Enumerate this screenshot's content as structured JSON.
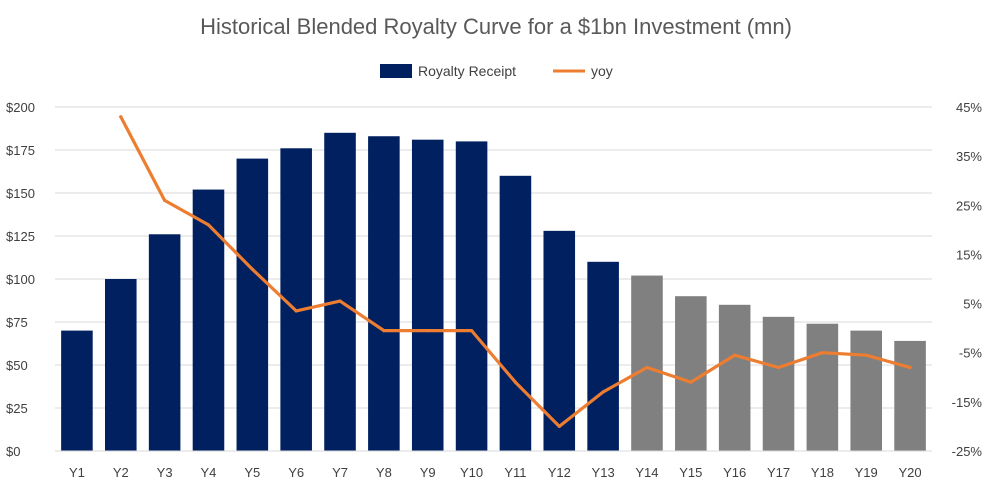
{
  "chart_data": {
    "type": "bar",
    "title": "Historical Blended Royalty Curve for a $1bn Investment (mn)",
    "categories": [
      "Y1",
      "Y2",
      "Y3",
      "Y4",
      "Y5",
      "Y6",
      "Y7",
      "Y8",
      "Y9",
      "Y10",
      "Y11",
      "Y12",
      "Y13",
      "Y14",
      "Y15",
      "Y16",
      "Y17",
      "Y18",
      "Y19",
      "Y20"
    ],
    "series": [
      {
        "name": "Royalty Receipt",
        "type": "bar",
        "axis": "left",
        "values": [
          70,
          100,
          126,
          152,
          170,
          176,
          185,
          183,
          181,
          180,
          160,
          128,
          110,
          102,
          90,
          85,
          78,
          74,
          70,
          64
        ],
        "colors": [
          "#002060",
          "#002060",
          "#002060",
          "#002060",
          "#002060",
          "#002060",
          "#002060",
          "#002060",
          "#002060",
          "#002060",
          "#002060",
          "#002060",
          "#002060",
          "#808080",
          "#808080",
          "#808080",
          "#808080",
          "#808080",
          "#808080",
          "#808080"
        ]
      },
      {
        "name": "yoy",
        "type": "line",
        "axis": "right",
        "color": "#ED7D31",
        "values": [
          null,
          43,
          26,
          21,
          12,
          3.5,
          5.5,
          -0.5,
          -0.5,
          -0.5,
          -11,
          -20,
          -13,
          -8,
          -11,
          -5.5,
          -8,
          -5,
          -5.5,
          -8
        ]
      }
    ],
    "left_axis": {
      "ylim": [
        0,
        200
      ],
      "ticks": [
        "$0",
        "$25",
        "$50",
        "$75",
        "$100",
        "$125",
        "$150",
        "$175",
        "$200"
      ]
    },
    "right_axis": {
      "ylim": [
        -25,
        45
      ],
      "ticks": [
        "-25%",
        "-15%",
        "-5%",
        "5%",
        "15%",
        "25%",
        "35%",
        "45%"
      ]
    },
    "legend": {
      "position": "top",
      "items": [
        "Royalty Receipt",
        "yoy"
      ]
    },
    "grid": true,
    "colors": {
      "bar_historical": "#002060",
      "bar_projected": "#808080",
      "line": "#ED7D31",
      "grid": "#D9D9D9"
    }
  }
}
